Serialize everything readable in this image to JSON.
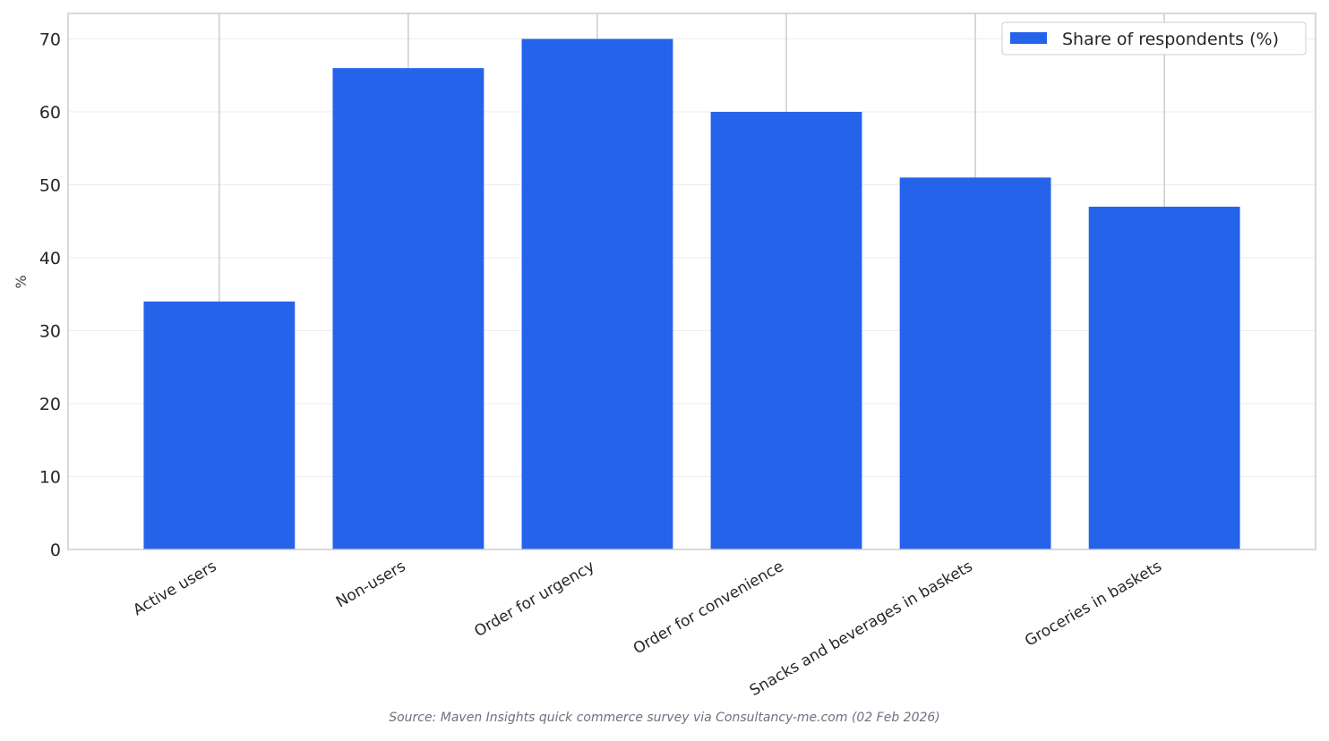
{
  "chart_data": {
    "type": "bar",
    "title": "",
    "xlabel": "",
    "ylabel": "%",
    "categories": [
      "Active users",
      "Non-users",
      "Order for urgency",
      "Order for convenience",
      "Snacks and beverages in baskets",
      "Groceries in baskets"
    ],
    "series": [
      {
        "name": "Share of respondents (%)",
        "values": [
          34,
          66,
          70,
          60,
          51,
          47
        ],
        "color": "#2563eb"
      }
    ],
    "ylim": [
      0,
      73.5
    ],
    "yticks": [
      0,
      10,
      20,
      30,
      40,
      50,
      60,
      70
    ],
    "ytick_labels": [
      "0",
      "10",
      "20",
      "30",
      "40",
      "50",
      "60",
      "70"
    ],
    "grid": true,
    "legend_position": "top-right"
  },
  "footer": {
    "source": "Source: Maven Insights quick commerce survey via Consultancy-me.com (02 Feb 2026)"
  },
  "colors": {
    "bar": "#2563eb",
    "grid": "#ebebeb",
    "frame": "#cccccc",
    "text": "#262626"
  }
}
